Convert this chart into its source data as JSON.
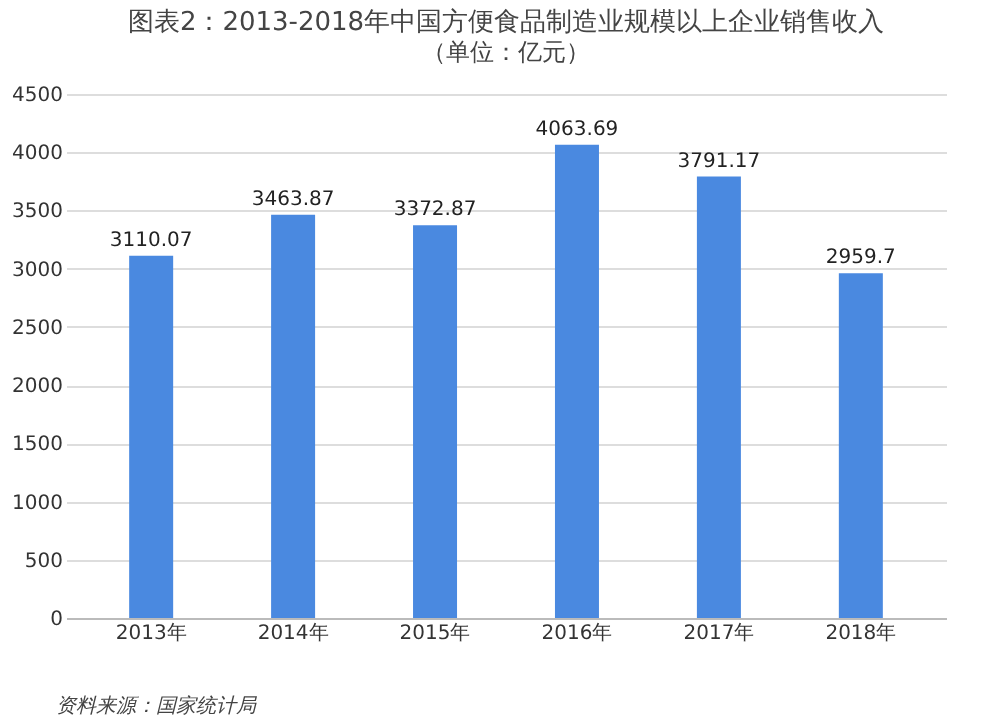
{
  "chart_data": {
    "type": "bar",
    "title": "图表2：2013-2018年中国方便食品制造业规模以上企业销售收入",
    "subtitle": "（单位：亿元）",
    "categories": [
      "2013年",
      "2014年",
      "2015年",
      "2016年",
      "2017年",
      "2018年"
    ],
    "values": [
      3110.07,
      3463.87,
      3372.87,
      4063.69,
      3791.17,
      2959.7
    ],
    "color": "#4a89e0",
    "ylim": [
      0,
      4500
    ],
    "yticks": [
      0,
      500,
      1000,
      1500,
      2000,
      2500,
      3000,
      3500,
      4000,
      4500
    ],
    "grid": "y",
    "data_labels": true,
    "annotations": [
      "资料来源：国家统计局"
    ]
  }
}
